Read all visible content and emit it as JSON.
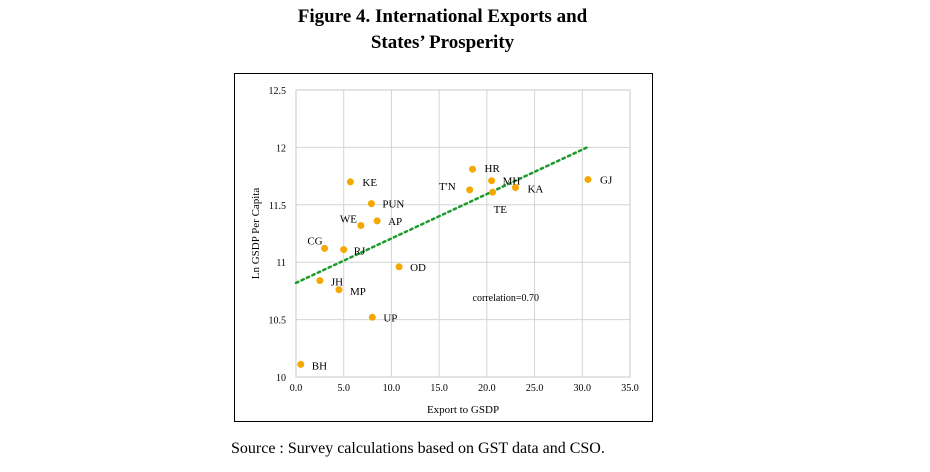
{
  "chart_data": {
    "type": "scatter",
    "title_lines": [
      "Figure 4. International Exports and",
      "States’ Prosperity"
    ],
    "xlabel": "Export to GSDP",
    "ylabel": "Ln GSDP Per Capita",
    "xlim": [
      0,
      35
    ],
    "ylim": [
      10,
      12.5
    ],
    "xticks": [
      0,
      5,
      10,
      15,
      20,
      25,
      30,
      35
    ],
    "xtick_labels": [
      "0.0",
      "5.0",
      "10.0",
      "15.0",
      "20.0",
      "25.0",
      "30.0",
      "35.0"
    ],
    "yticks": [
      10,
      10.5,
      11,
      11.5,
      12,
      12.5
    ],
    "ytick_labels": [
      "10",
      "10.5",
      "11",
      "11.5",
      "12",
      "12.5"
    ],
    "grid": true,
    "point_color": "#f5a800",
    "trend_color": "#1f9b2e",
    "trendline": {
      "x": [
        0,
        30.5
      ],
      "y": [
        10.82,
        12.0
      ]
    },
    "annotation": "correlation=0.70",
    "points": [
      {
        "label": "BH",
        "x": 0.5,
        "y": 10.11
      },
      {
        "label": "JH",
        "x": 2.5,
        "y": 10.84
      },
      {
        "label": "MP",
        "x": 4.5,
        "y": 10.76
      },
      {
        "label": "CG",
        "x": 3.0,
        "y": 11.12
      },
      {
        "label": "RJ",
        "x": 5.0,
        "y": 11.11
      },
      {
        "label": "UP",
        "x": 8.0,
        "y": 10.52
      },
      {
        "label": "OD",
        "x": 10.8,
        "y": 10.96
      },
      {
        "label": "WE",
        "x": 6.8,
        "y": 11.32
      },
      {
        "label": "AP",
        "x": 8.5,
        "y": 11.36
      },
      {
        "label": "PUN",
        "x": 7.9,
        "y": 11.51
      },
      {
        "label": "KE",
        "x": 5.7,
        "y": 11.7
      },
      {
        "label": "HR",
        "x": 18.5,
        "y": 11.81
      },
      {
        "label": "T'N",
        "x": 18.2,
        "y": 11.63
      },
      {
        "label": "MH",
        "x": 20.5,
        "y": 11.71
      },
      {
        "label": "TE",
        "x": 20.6,
        "y": 11.61
      },
      {
        "label": "KA",
        "x": 23.0,
        "y": 11.65
      },
      {
        "label": "GJ",
        "x": 30.6,
        "y": 11.72
      }
    ]
  },
  "source_text": "Source : Survey calculations based on GST data and CSO."
}
